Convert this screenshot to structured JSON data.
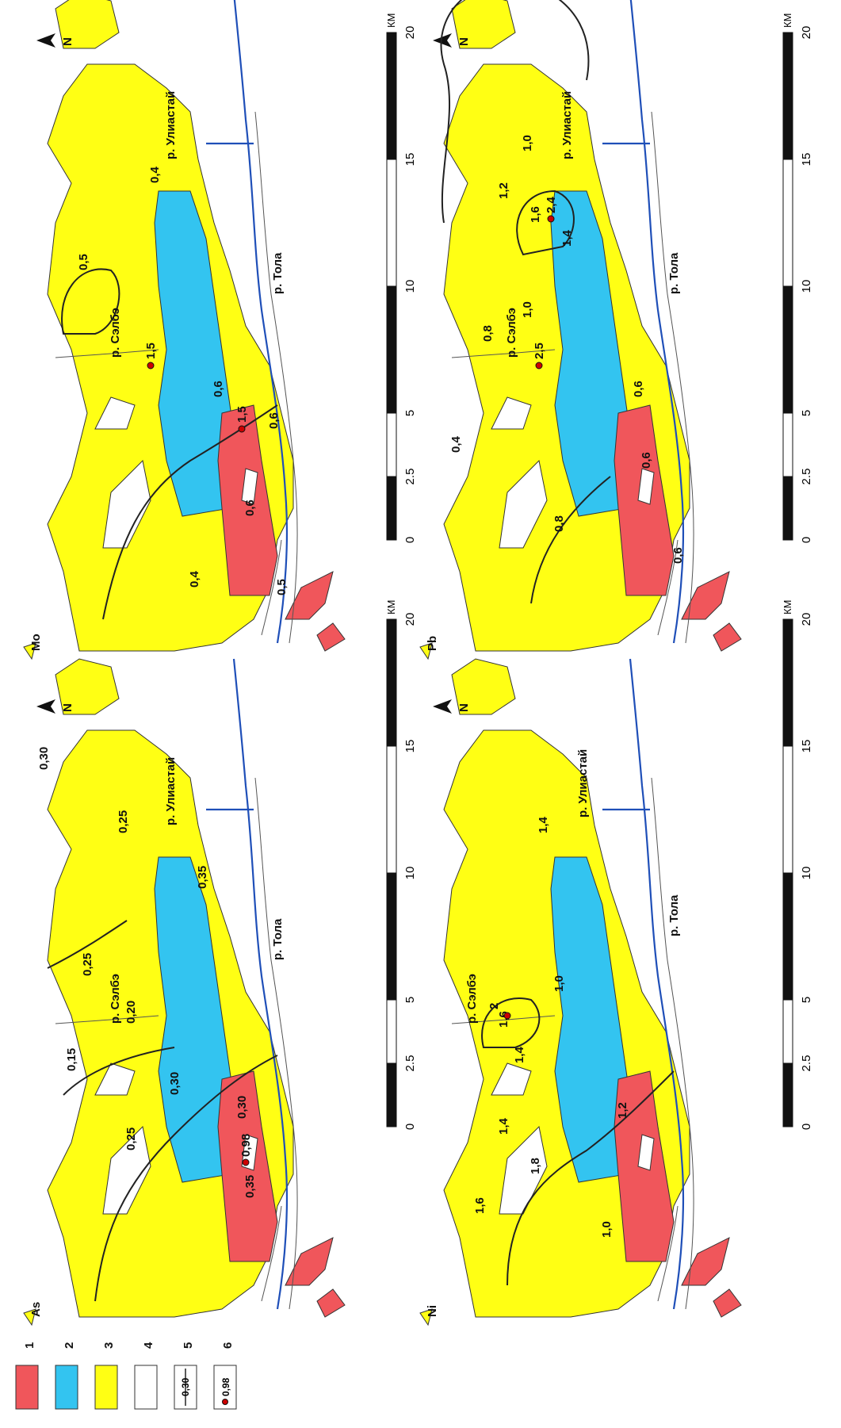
{
  "legend": {
    "items": [
      {
        "num": "1",
        "color": "#f0565b"
      },
      {
        "num": "2",
        "color": "#33c4f0"
      },
      {
        "num": "3",
        "color": "#ffff14"
      },
      {
        "num": "4",
        "color": "#ffffff"
      },
      {
        "num": "5",
        "line_label": "0,30"
      },
      {
        "num": "6",
        "point_label": "0,98"
      }
    ]
  },
  "scale_ticks": [
    "0",
    "2.5",
    "5",
    "10",
    "15",
    "20"
  ],
  "scale_unit": "КМ",
  "north_label": "N",
  "rivers": {
    "tola": "р. Тола",
    "selbe": "р. Сэлбэ",
    "uliastai": "р. Улиастай"
  },
  "panels": {
    "as": {
      "element": "As",
      "isolines": [
        "0,15",
        "0,20",
        "0,25",
        "0,25",
        "0,30",
        "0,35",
        "0,30",
        "0,25",
        "0,35",
        "0,30"
      ],
      "point": "0,98"
    },
    "mo": {
      "element": "Mo",
      "isolines": [
        "0,5",
        "0,4",
        "0,6",
        "0,4",
        "0,5",
        "0,6",
        "0,6"
      ],
      "points": [
        "1,5",
        "1,5"
      ]
    },
    "ni": {
      "element": "Ni",
      "isolines": [
        "1,4",
        "1,6",
        "1,4",
        "1,0",
        "1,2",
        "1,6",
        "1,0",
        "1,8",
        "1,4"
      ],
      "point": "2"
    },
    "pb": {
      "element": "Pb",
      "isolines": [
        "1,0",
        "1,2",
        "1,6",
        "1,4",
        "1,0",
        "0,8",
        "0,4",
        "0,6",
        "0,8",
        "0,6",
        "0,6"
      ],
      "points": [
        "2,4",
        "2,5"
      ]
    }
  }
}
